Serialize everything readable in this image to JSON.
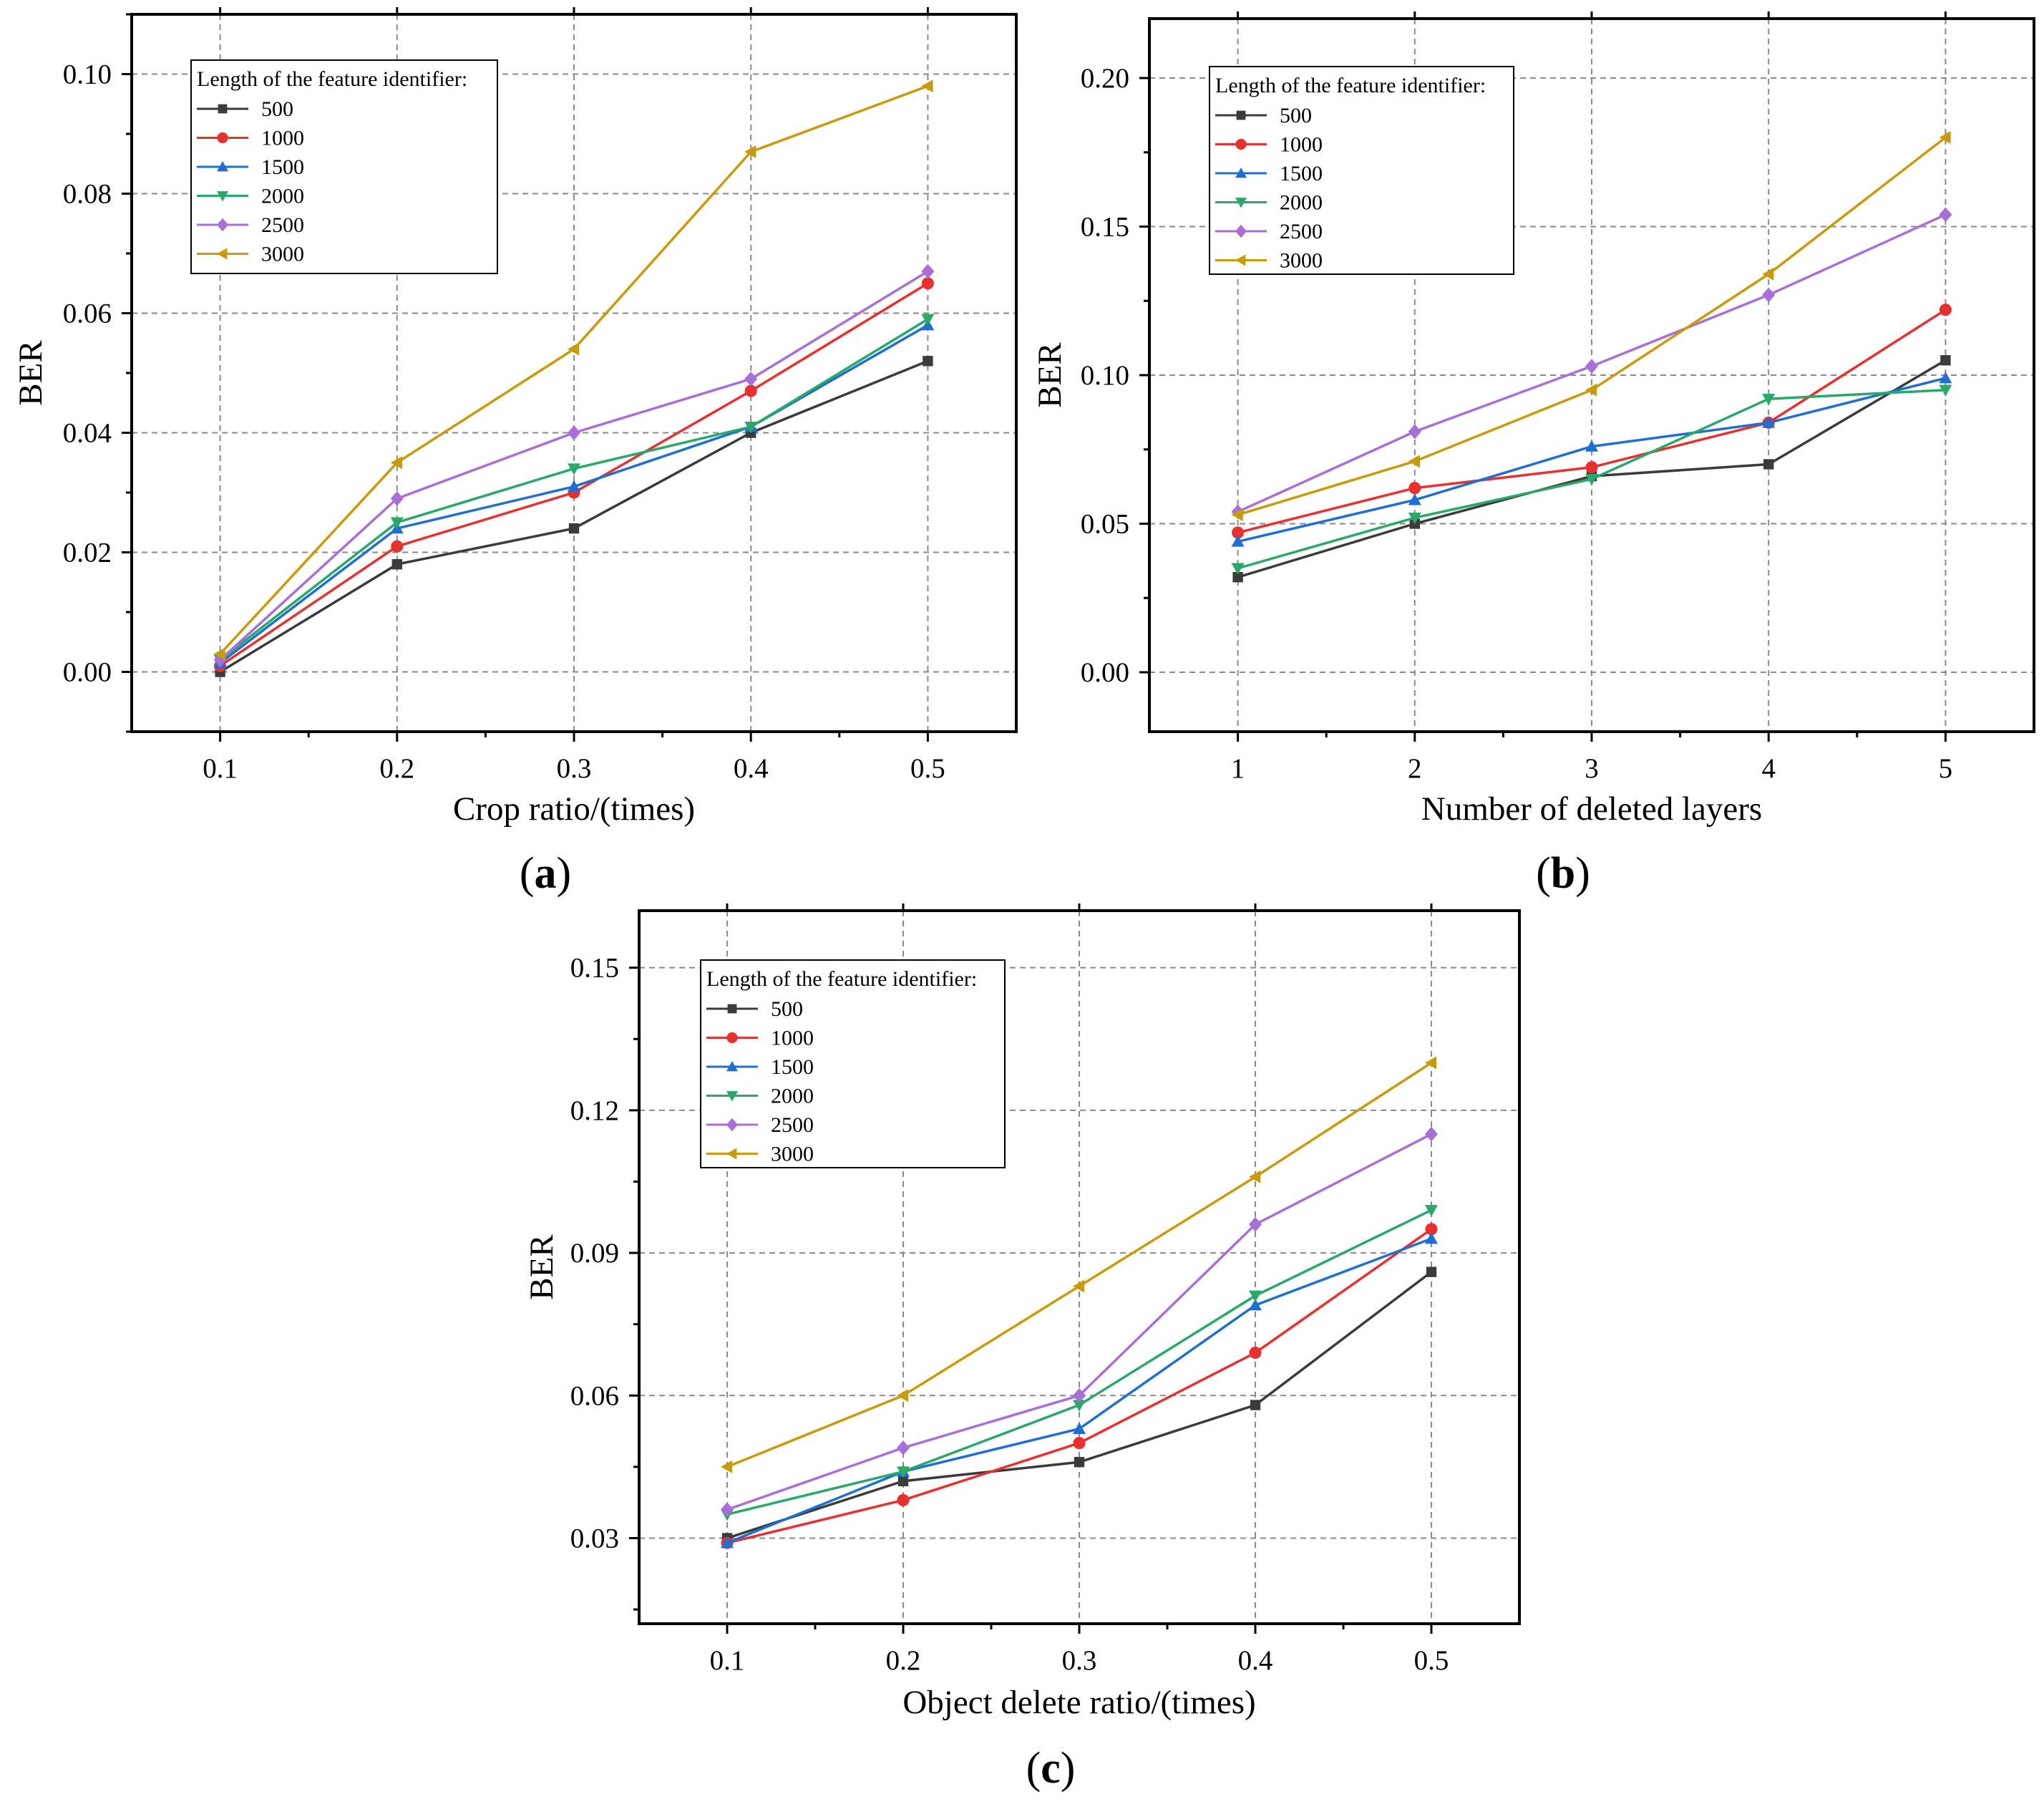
{
  "legend_title": "Length of the feature identifier:",
  "series_style": [
    {
      "name": "500",
      "color": "#3b3b3b",
      "marker": "square"
    },
    {
      "name": "1000",
      "color": "#e8312e",
      "marker": "circle"
    },
    {
      "name": "1500",
      "color": "#1f6fd1",
      "marker": "triangle-up"
    },
    {
      "name": "2000",
      "color": "#2aa869",
      "marker": "triangle-down"
    },
    {
      "name": "2500",
      "color": "#a86fd9",
      "marker": "diamond"
    },
    {
      "name": "3000",
      "color": "#c99a0a",
      "marker": "triangle-left"
    }
  ],
  "chart_data": [
    {
      "id": "a",
      "type": "line",
      "panel_label": "a",
      "xlabel": "Crop ratio/(times)",
      "ylabel": "BER",
      "x": [
        0.1,
        0.2,
        0.3,
        0.4,
        0.5
      ],
      "xticks": [
        "0.1",
        "0.2",
        "0.3",
        "0.4",
        "0.5"
      ],
      "xlim": [
        0.05,
        0.55
      ],
      "ylim": [
        -0.01,
        0.11
      ],
      "yticks": [
        0.0,
        0.02,
        0.04,
        0.06,
        0.08,
        0.1
      ],
      "ytick_labels": [
        "0.00",
        "0.02",
        "0.04",
        "0.06",
        "0.08",
        "0.10"
      ],
      "grid": true,
      "legend_position": "top-left",
      "series": [
        {
          "name": "500",
          "values": [
            0.0,
            0.018,
            0.024,
            0.04,
            0.052
          ]
        },
        {
          "name": "1000",
          "values": [
            0.001,
            0.021,
            0.03,
            0.047,
            0.065
          ]
        },
        {
          "name": "1500",
          "values": [
            0.0015,
            0.024,
            0.031,
            0.041,
            0.058
          ]
        },
        {
          "name": "2000",
          "values": [
            0.002,
            0.025,
            0.034,
            0.041,
            0.059
          ]
        },
        {
          "name": "2500",
          "values": [
            0.002,
            0.029,
            0.04,
            0.049,
            0.067
          ]
        },
        {
          "name": "3000",
          "values": [
            0.003,
            0.035,
            0.054,
            0.087,
            0.098
          ]
        }
      ]
    },
    {
      "id": "b",
      "type": "line",
      "panel_label": "b",
      "xlabel": "Number of deleted layers",
      "ylabel": "BER",
      "x": [
        1,
        2,
        3,
        4,
        5
      ],
      "xticks": [
        "1",
        "2",
        "3",
        "4",
        "5"
      ],
      "xlim": [
        0.5,
        5.5
      ],
      "ylim": [
        -0.02,
        0.22
      ],
      "yticks": [
        0.0,
        0.05,
        0.1,
        0.15,
        0.2
      ],
      "ytick_labels": [
        "0.00",
        "0.05",
        "0.10",
        "0.15",
        "0.20"
      ],
      "grid": true,
      "legend_position": "top-left",
      "series": [
        {
          "name": "500",
          "values": [
            0.032,
            0.05,
            0.066,
            0.07,
            0.105
          ]
        },
        {
          "name": "1000",
          "values": [
            0.047,
            0.062,
            0.069,
            0.084,
            0.122
          ]
        },
        {
          "name": "1500",
          "values": [
            0.044,
            0.058,
            0.076,
            0.084,
            0.099
          ]
        },
        {
          "name": "2000",
          "values": [
            0.035,
            0.052,
            0.065,
            0.092,
            0.095
          ]
        },
        {
          "name": "2500",
          "values": [
            0.054,
            0.081,
            0.103,
            0.127,
            0.154
          ]
        },
        {
          "name": "3000",
          "values": [
            0.053,
            0.071,
            0.095,
            0.134,
            0.18
          ]
        }
      ]
    },
    {
      "id": "c",
      "type": "line",
      "panel_label": "c",
      "xlabel": "Object delete ratio/(times)",
      "ylabel": "BER",
      "x": [
        0.1,
        0.2,
        0.3,
        0.4,
        0.5
      ],
      "xticks": [
        "0.1",
        "0.2",
        "0.3",
        "0.4",
        "0.5"
      ],
      "xlim": [
        0.05,
        0.55
      ],
      "ylim": [
        0.012,
        0.162
      ],
      "yticks": [
        0.03,
        0.06,
        0.09,
        0.12,
        0.15
      ],
      "ytick_labels": [
        "0.03",
        "0.06",
        "0.09",
        "0.12",
        "0.15"
      ],
      "grid": true,
      "legend_position": "top-left",
      "series": [
        {
          "name": "500",
          "values": [
            0.03,
            0.042,
            0.046,
            0.058,
            0.086
          ]
        },
        {
          "name": "1000",
          "values": [
            0.029,
            0.038,
            0.05,
            0.069,
            0.095
          ]
        },
        {
          "name": "1500",
          "values": [
            0.029,
            0.044,
            0.053,
            0.079,
            0.093
          ]
        },
        {
          "name": "2000",
          "values": [
            0.035,
            0.044,
            0.058,
            0.081,
            0.099
          ]
        },
        {
          "name": "2500",
          "values": [
            0.036,
            0.049,
            0.06,
            0.096,
            0.115
          ]
        },
        {
          "name": "3000",
          "values": [
            0.045,
            0.06,
            0.083,
            0.106,
            0.13
          ]
        }
      ]
    }
  ]
}
